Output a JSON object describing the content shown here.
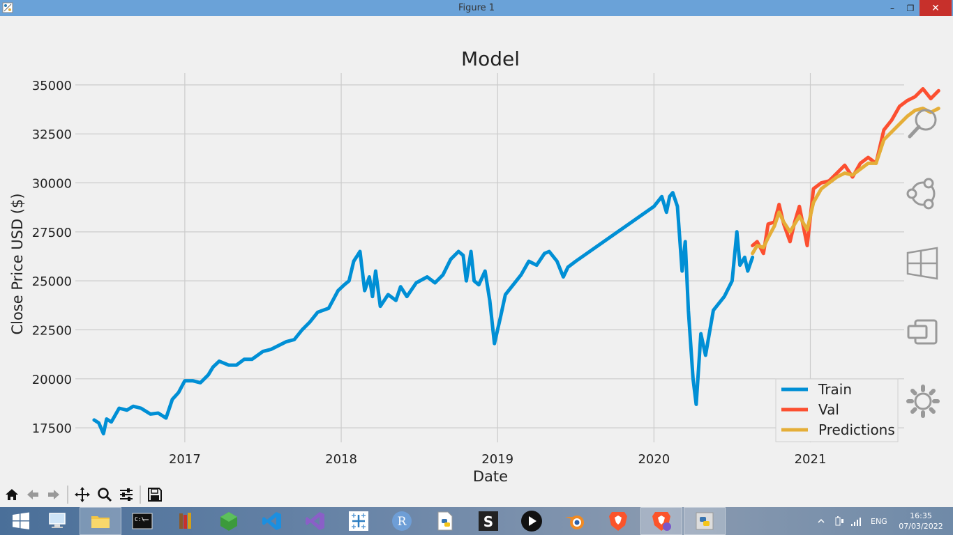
{
  "window": {
    "title": "Figure 1",
    "minimize_glyph": "–",
    "maximize_glyph": "❐",
    "close_glyph": "✕"
  },
  "chart_data": {
    "type": "line",
    "title": "Model",
    "xlabel": "Date",
    "ylabel": "Close Price USD ($)",
    "x_ticks": [
      "2017",
      "2018",
      "2019",
      "2020",
      "2021"
    ],
    "y_ticks": [
      "17500",
      "20000",
      "22500",
      "25000",
      "27500",
      "30000",
      "32500",
      "35000"
    ],
    "xlim": [
      2016.3,
      2021.6
    ],
    "ylim": [
      16900,
      35600
    ],
    "grid": true,
    "legend_position": "bottom-right",
    "series": [
      {
        "name": "Train",
        "color": "#008fd5",
        "points": [
          [
            2016.42,
            17900
          ],
          [
            2016.45,
            17750
          ],
          [
            2016.48,
            17200
          ],
          [
            2016.5,
            17950
          ],
          [
            2016.53,
            17800
          ],
          [
            2016.58,
            18500
          ],
          [
            2016.63,
            18400
          ],
          [
            2016.67,
            18600
          ],
          [
            2016.72,
            18500
          ],
          [
            2016.75,
            18350
          ],
          [
            2016.78,
            18200
          ],
          [
            2016.83,
            18250
          ],
          [
            2016.88,
            18000
          ],
          [
            2016.92,
            18950
          ],
          [
            2016.96,
            19300
          ],
          [
            2017.0,
            19900
          ],
          [
            2017.05,
            19900
          ],
          [
            2017.1,
            19800
          ],
          [
            2017.15,
            20200
          ],
          [
            2017.18,
            20600
          ],
          [
            2017.22,
            20900
          ],
          [
            2017.28,
            20700
          ],
          [
            2017.33,
            20700
          ],
          [
            2017.38,
            21000
          ],
          [
            2017.43,
            21000
          ],
          [
            2017.5,
            21400
          ],
          [
            2017.55,
            21500
          ],
          [
            2017.6,
            21700
          ],
          [
            2017.65,
            21900
          ],
          [
            2017.7,
            22000
          ],
          [
            2017.75,
            22500
          ],
          [
            2017.8,
            22900
          ],
          [
            2017.85,
            23400
          ],
          [
            2017.92,
            23600
          ],
          [
            2017.98,
            24500
          ],
          [
            2018.02,
            24800
          ],
          [
            2018.05,
            25000
          ],
          [
            2018.08,
            26000
          ],
          [
            2018.12,
            26500
          ],
          [
            2018.15,
            24500
          ],
          [
            2018.18,
            25200
          ],
          [
            2018.2,
            24200
          ],
          [
            2018.22,
            25500
          ],
          [
            2018.25,
            23700
          ],
          [
            2018.3,
            24300
          ],
          [
            2018.35,
            24000
          ],
          [
            2018.38,
            24700
          ],
          [
            2018.42,
            24200
          ],
          [
            2018.48,
            24900
          ],
          [
            2018.55,
            25200
          ],
          [
            2018.6,
            24900
          ],
          [
            2018.65,
            25300
          ],
          [
            2018.7,
            26100
          ],
          [
            2018.75,
            26500
          ],
          [
            2018.78,
            26300
          ],
          [
            2018.8,
            25000
          ],
          [
            2018.83,
            26500
          ],
          [
            2018.85,
            25000
          ],
          [
            2018.88,
            24800
          ],
          [
            2018.92,
            25500
          ],
          [
            2018.95,
            24000
          ],
          [
            2018.98,
            21800
          ],
          [
            2019.02,
            23200
          ],
          [
            2019.05,
            24300
          ],
          [
            2019.1,
            24800
          ],
          [
            2019.15,
            25300
          ],
          [
            2019.2,
            26000
          ],
          [
            2019.25,
            25800
          ],
          [
            2019.3,
            26400
          ],
          [
            2019.33,
            26500
          ],
          [
            2019.38,
            26000
          ],
          [
            2019.42,
            25200
          ],
          [
            2019.45,
            25700
          ],
          [
            2019.5,
            26000
          ],
          [
            2020.0,
            28800
          ],
          [
            2020.05,
            29300
          ],
          [
            2020.08,
            28500
          ],
          [
            2020.1,
            29300
          ],
          [
            2020.12,
            29500
          ],
          [
            2020.15,
            28800
          ],
          [
            2020.18,
            25500
          ],
          [
            2020.2,
            27000
          ],
          [
            2020.22,
            23500
          ],
          [
            2020.25,
            20000
          ],
          [
            2020.27,
            18700
          ],
          [
            2020.3,
            22300
          ],
          [
            2020.33,
            21200
          ],
          [
            2020.38,
            23500
          ],
          [
            2020.45,
            24200
          ],
          [
            2020.5,
            25000
          ],
          [
            2020.53,
            27500
          ],
          [
            2020.55,
            25800
          ],
          [
            2020.58,
            26200
          ],
          [
            2020.6,
            25500
          ],
          [
            2020.63,
            26200
          ]
        ]
      },
      {
        "name": "Val",
        "color": "#fc4f30",
        "points": [
          [
            2020.63,
            26800
          ],
          [
            2020.66,
            27000
          ],
          [
            2020.7,
            26400
          ],
          [
            2020.73,
            27900
          ],
          [
            2020.77,
            28000
          ],
          [
            2020.8,
            28900
          ],
          [
            2020.83,
            27900
          ],
          [
            2020.87,
            27000
          ],
          [
            2020.9,
            28000
          ],
          [
            2020.93,
            28800
          ],
          [
            2020.98,
            26800
          ],
          [
            2021.02,
            29700
          ],
          [
            2021.07,
            30000
          ],
          [
            2021.12,
            30100
          ],
          [
            2021.17,
            30500
          ],
          [
            2021.22,
            30900
          ],
          [
            2021.27,
            30300
          ],
          [
            2021.32,
            31000
          ],
          [
            2021.37,
            31300
          ],
          [
            2021.42,
            31000
          ],
          [
            2021.47,
            32700
          ],
          [
            2021.52,
            33200
          ],
          [
            2021.57,
            33900
          ],
          [
            2021.62,
            34200
          ],
          [
            2021.67,
            34400
          ],
          [
            2021.72,
            34800
          ],
          [
            2021.77,
            34300
          ],
          [
            2021.82,
            34700
          ]
        ]
      },
      {
        "name": "Predictions",
        "color": "#e5ae38",
        "points": [
          [
            2020.63,
            26400
          ],
          [
            2020.66,
            26800
          ],
          [
            2020.7,
            26700
          ],
          [
            2020.73,
            27200
          ],
          [
            2020.77,
            27800
          ],
          [
            2020.8,
            28500
          ],
          [
            2020.83,
            28000
          ],
          [
            2020.87,
            27500
          ],
          [
            2020.9,
            27900
          ],
          [
            2020.93,
            28300
          ],
          [
            2020.98,
            27600
          ],
          [
            2021.02,
            29000
          ],
          [
            2021.07,
            29700
          ],
          [
            2021.12,
            30000
          ],
          [
            2021.17,
            30300
          ],
          [
            2021.22,
            30500
          ],
          [
            2021.27,
            30400
          ],
          [
            2021.32,
            30700
          ],
          [
            2021.37,
            31000
          ],
          [
            2021.42,
            31000
          ],
          [
            2021.47,
            32200
          ],
          [
            2021.52,
            32600
          ],
          [
            2021.57,
            33000
          ],
          [
            2021.62,
            33400
          ],
          [
            2021.67,
            33700
          ],
          [
            2021.72,
            33800
          ],
          [
            2021.77,
            33600
          ],
          [
            2021.82,
            33800
          ]
        ]
      }
    ]
  },
  "charms": [
    "search-charm-icon",
    "share-charm-icon",
    "start-charm-icon",
    "devices-charm-icon",
    "settings-charm-icon"
  ],
  "toolbar": [
    "home-icon",
    "back-icon",
    "forward-icon",
    "pan-icon",
    "zoom-icon",
    "configure-subplots-icon",
    "save-icon"
  ],
  "taskbar": {
    "pinned": [
      "file-explorer-icon",
      "command-prompt-icon",
      "library-icon",
      "node-icon",
      "vscode-icon",
      "visual-studio-icon",
      "tableau-icon",
      "r-icon",
      "python-file-icon",
      "s-app-icon",
      "media-player-icon",
      "blender-icon",
      "brave-icon",
      "brave-beta-icon",
      "python-running-icon"
    ],
    "r_label": "R",
    "s_label": "S",
    "language": "ENG",
    "time": "16:35",
    "date": "07/03/2022"
  }
}
